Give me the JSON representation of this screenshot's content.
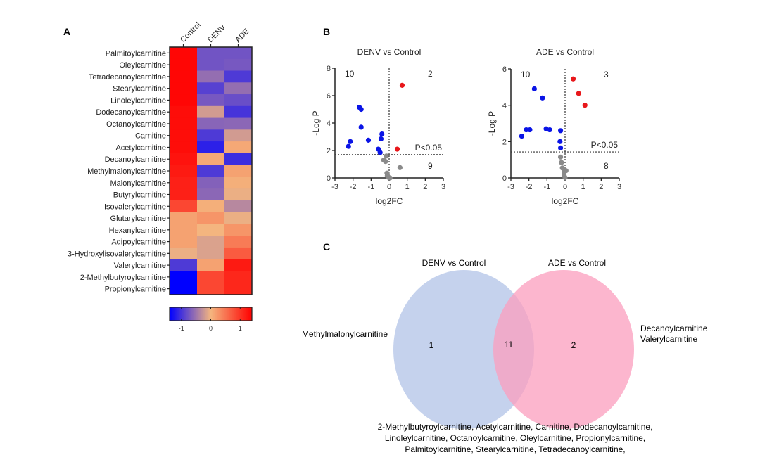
{
  "panels": {
    "A": "A",
    "B": "B",
    "C": "C"
  },
  "chart_data": [
    {
      "type": "heatmap",
      "panel": "A",
      "columns": [
        "Control",
        "DENV",
        "ADE"
      ],
      "rows": [
        "Palmitoylcarnitine",
        "Oleylcarnitine",
        "Tetradecanoylcarnitine",
        "Stearylcarnitine",
        "Linoleylcarnitine",
        "Dodecanoylcarnitine",
        "Octanoylcarnitine",
        "Carnitine",
        "Acetylcarnitine",
        "Decanoylcarnitine",
        "Methylmalonylcarnitine",
        "Malonylcarnitine",
        "Butyrylcarnitine",
        "Isovalerylcarnitine",
        "Glutarylcarnitine",
        "Hexanylcarnitine",
        "Adipoylcarnitine",
        "3-Hydroxylisovalerylcarnitine",
        "Valerylcarnitine",
        "2-Methylbutyroylcarnitine",
        "Propionylcarnitine"
      ],
      "values": [
        [
          1.35,
          -0.75,
          -0.75
        ],
        [
          1.35,
          -0.75,
          -0.72
        ],
        [
          1.35,
          -0.55,
          -0.95
        ],
        [
          1.35,
          -0.9,
          -0.55
        ],
        [
          1.35,
          -0.72,
          -0.8
        ],
        [
          1.3,
          -0.2,
          -1.0
        ],
        [
          1.3,
          -0.62,
          -0.6
        ],
        [
          1.3,
          -0.95,
          -0.2
        ],
        [
          1.3,
          -1.15,
          0.1
        ],
        [
          1.25,
          0.1,
          -1.05
        ],
        [
          1.2,
          -0.95,
          0.15
        ],
        [
          1.15,
          -0.65,
          0.05
        ],
        [
          1.15,
          -0.6,
          -0.05
        ],
        [
          0.85,
          0.05,
          -0.35
        ],
        [
          0.15,
          0.25,
          -0.05
        ],
        [
          0.15,
          0.0,
          0.25
        ],
        [
          0.15,
          -0.15,
          0.45
        ],
        [
          -0.05,
          -0.15,
          0.7
        ],
        [
          -0.95,
          0.15,
          1.2
        ],
        [
          -1.4,
          0.85,
          1.1
        ],
        [
          -1.4,
          0.85,
          1.1
        ]
      ],
      "colorbar": {
        "range": [
          -1.4,
          1.4
        ],
        "ticks": [
          -1,
          0,
          1
        ],
        "tick_labels": [
          "-1",
          "0",
          "1"
        ],
        "low_color": "#0000ff",
        "mid_color": "#f4b57f",
        "high_color": "#ff0000"
      }
    },
    {
      "type": "scatter",
      "panel": "B",
      "title": "DENV vs Control",
      "xlabel": "log2FC",
      "ylabel": "-Log P",
      "xlim": [
        -3,
        3
      ],
      "ylim": [
        0,
        8
      ],
      "xticks": [
        -3,
        -2,
        -1,
        0,
        1,
        2,
        3
      ],
      "yticks": [
        0,
        2,
        4,
        6,
        8
      ],
      "threshold_y": 1.7,
      "threshold_x": 0,
      "threshold_label": "P<0.05",
      "counts": {
        "down": "10",
        "up": "2",
        "ns": "9"
      },
      "colors": {
        "down": "#0a14e6",
        "up": "#e8171b",
        "ns": "#8a8a8a"
      },
      "points": [
        {
          "x": -2.25,
          "y": 2.3,
          "group": "down"
        },
        {
          "x": -2.15,
          "y": 2.65,
          "group": "down"
        },
        {
          "x": -1.65,
          "y": 5.15,
          "group": "down"
        },
        {
          "x": -1.55,
          "y": 5.0,
          "group": "down"
        },
        {
          "x": -1.55,
          "y": 3.7,
          "group": "down"
        },
        {
          "x": -1.15,
          "y": 2.75,
          "group": "down"
        },
        {
          "x": -0.6,
          "y": 2.1,
          "group": "down"
        },
        {
          "x": -0.5,
          "y": 1.85,
          "group": "down"
        },
        {
          "x": -0.45,
          "y": 2.85,
          "group": "down"
        },
        {
          "x": -0.4,
          "y": 3.2,
          "group": "down"
        },
        {
          "x": 0.72,
          "y": 6.75,
          "group": "up"
        },
        {
          "x": 0.45,
          "y": 2.1,
          "group": "up"
        },
        {
          "x": 0.6,
          "y": 0.75,
          "group": "ns"
        },
        {
          "x": -0.15,
          "y": 1.6,
          "group": "ns"
        },
        {
          "x": -0.3,
          "y": 1.3,
          "group": "ns"
        },
        {
          "x": -0.2,
          "y": 1.2,
          "group": "ns"
        },
        {
          "x": -0.12,
          "y": 0.35,
          "group": "ns"
        },
        {
          "x": -0.1,
          "y": 0.15,
          "group": "ns"
        },
        {
          "x": -0.05,
          "y": 0.05,
          "group": "ns"
        },
        {
          "x": 0.05,
          "y": 0.0,
          "group": "ns"
        },
        {
          "x": -0.1,
          "y": 0.2,
          "group": "ns"
        }
      ]
    },
    {
      "type": "scatter",
      "panel": "B",
      "title": "ADE vs Control",
      "xlabel": "log2FC",
      "ylabel": "-Log P",
      "xlim": [
        -3,
        3
      ],
      "ylim": [
        0,
        6
      ],
      "xticks": [
        -3,
        -2,
        -1,
        0,
        1,
        2,
        3
      ],
      "yticks": [
        0,
        2,
        4,
        6
      ],
      "threshold_y": 1.43,
      "threshold_x": 0,
      "threshold_label": "P<0.05",
      "counts": {
        "down": "10",
        "up": "3",
        "ns": "8"
      },
      "colors": {
        "down": "#0a14e6",
        "up": "#e8171b",
        "ns": "#8a8a8a"
      },
      "points": [
        {
          "x": -2.4,
          "y": 2.3,
          "group": "down"
        },
        {
          "x": -2.15,
          "y": 2.65,
          "group": "down"
        },
        {
          "x": -1.95,
          "y": 2.65,
          "group": "down"
        },
        {
          "x": -1.7,
          "y": 4.9,
          "group": "down"
        },
        {
          "x": -1.25,
          "y": 4.4,
          "group": "down"
        },
        {
          "x": -1.05,
          "y": 2.7,
          "group": "down"
        },
        {
          "x": -0.85,
          "y": 2.65,
          "group": "down"
        },
        {
          "x": -0.25,
          "y": 2.6,
          "group": "down"
        },
        {
          "x": -0.28,
          "y": 2.0,
          "group": "down"
        },
        {
          "x": -0.25,
          "y": 1.65,
          "group": "down"
        },
        {
          "x": 0.45,
          "y": 5.45,
          "group": "up"
        },
        {
          "x": 0.75,
          "y": 4.65,
          "group": "up"
        },
        {
          "x": 1.1,
          "y": 4.0,
          "group": "up"
        },
        {
          "x": -0.25,
          "y": 1.15,
          "group": "ns"
        },
        {
          "x": -0.2,
          "y": 0.85,
          "group": "ns"
        },
        {
          "x": -0.15,
          "y": 0.55,
          "group": "ns"
        },
        {
          "x": -0.05,
          "y": 0.48,
          "group": "ns"
        },
        {
          "x": 0.05,
          "y": 0.4,
          "group": "ns"
        },
        {
          "x": -0.05,
          "y": 0.12,
          "group": "ns"
        },
        {
          "x": 0.0,
          "y": 0.02,
          "group": "ns"
        },
        {
          "x": -0.05,
          "y": 0.3,
          "group": "ns"
        }
      ]
    }
  ],
  "venn": {
    "left_title": "DENV vs Control",
    "right_title": "ADE vs Control",
    "left_only_count": "1",
    "overlap_count": "11",
    "right_only_count": "2",
    "left_only_label": "Methylmalonylcarnitine",
    "right_only_labels": [
      "Decanoylcarnitine",
      "Valerylcarnitine"
    ],
    "overlap_labels": [
      "2-Methylbutyroylcarnitine, Acetylcarnitine, Carnitine, Dodecanoylcarnitine,",
      "Linoleylcarnitine, Octanoylcarnitine, Oleylcarnitine, Propionylcarnitine,",
      "Palmitoylcarnitine, Stearylcarnitine, Tetradecanoylcarnitine,"
    ],
    "left_color": "#b6c7e8",
    "right_color": "#fb9ebd"
  }
}
